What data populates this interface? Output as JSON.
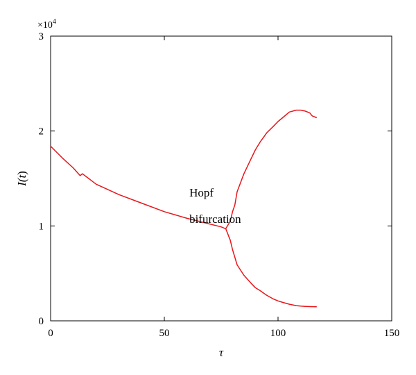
{
  "chart_data": {
    "type": "line",
    "xlabel": "τ",
    "ylabel_prefix": "I(",
    "ylabel_var": "t",
    "ylabel_suffix": ")",
    "y_multiplier_base": "×10",
    "y_multiplier_exp": "4",
    "xlim": [
      0,
      150
    ],
    "ylim": [
      0,
      30000
    ],
    "xticks": [
      0,
      50,
      100,
      150
    ],
    "xtick_labels": [
      "0",
      "50",
      "100",
      "150"
    ],
    "yticks": [
      0,
      10000,
      20000,
      30000
    ],
    "ytick_labels": [
      "0",
      "1",
      "2",
      "3"
    ],
    "grid": false,
    "line_color": "#e8161b",
    "annotations": [
      {
        "text": "Hopf",
        "x": 61,
        "y": 13100
      },
      {
        "text": "bifurcation",
        "x": 61,
        "y": 10300
      }
    ],
    "series": [
      {
        "x": [
          0,
          5,
          10,
          13,
          14,
          20,
          30,
          40,
          50,
          60,
          70,
          75,
          77
        ],
        "values": [
          18400,
          17200,
          16100,
          15300,
          15500,
          14400,
          13300,
          12400,
          11500,
          10800,
          10200,
          9900,
          9700
        ]
      },
      {
        "x": [
          77,
          79,
          80,
          81,
          82,
          85,
          88,
          90,
          92,
          95,
          98,
          100,
          102,
          105,
          108,
          110,
          112,
          114,
          115,
          117
        ],
        "values": [
          9700,
          10500,
          11500,
          12200,
          13600,
          15500,
          17000,
          18000,
          18800,
          19800,
          20500,
          21000,
          21400,
          22000,
          22200,
          22200,
          22100,
          21900,
          21600,
          21400
        ]
      },
      {
        "x": [
          77,
          79,
          80,
          81,
          82,
          85,
          88,
          90,
          92,
          95,
          98,
          100,
          102,
          105,
          108,
          110,
          112,
          114,
          117
        ],
        "values": [
          9700,
          8500,
          7500,
          6700,
          5900,
          4800,
          4000,
          3500,
          3200,
          2700,
          2300,
          2100,
          1950,
          1750,
          1600,
          1550,
          1520,
          1500,
          1480
        ]
      }
    ]
  }
}
